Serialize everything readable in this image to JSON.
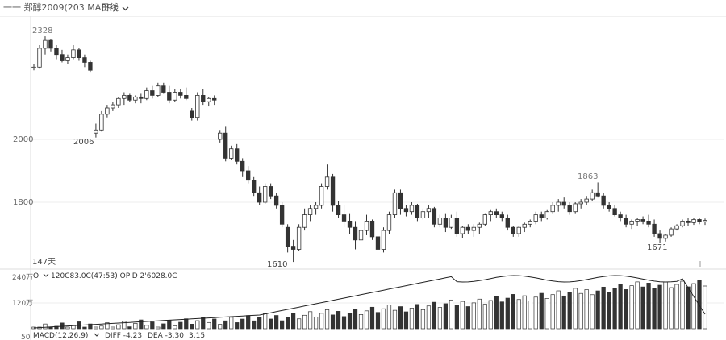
{
  "header": {
    "symbol_label": "一一 郑醇2009(203 MA09)",
    "period_label": "日线",
    "period_icon": "chevron-down-icon"
  },
  "main_chart": {
    "price_ticks": [
      "2000",
      "1800"
    ],
    "annotations": {
      "high_left": "2328",
      "low_mid": "2006",
      "low_bottom": "1610",
      "high_right": "1863",
      "low_right": "1671",
      "days_label": "147天"
    }
  },
  "volume_panel": {
    "legend_prefix": "OI",
    "legend_values": "120C83.0C(47:53)  OPID 2'6028.0C",
    "y_ticks": [
      "240万",
      "120万",
      "0"
    ]
  },
  "macd_panel": {
    "label": "MACD(12,26,9)",
    "diff": "DIFF -4.23",
    "dea": "DEA -3.30",
    "macd": "3.15"
  },
  "colors": {
    "up": "#ffffff",
    "down": "#333333",
    "outline": "#333333",
    "grid": "#eeeeee",
    "oi_line": "#222222"
  },
  "chart_data": {
    "type": "candlestick",
    "x_label": "",
    "y_label": "",
    "ylim": [
      1600,
      2350
    ],
    "candles": [
      [
        2230,
        2240,
        2220,
        2230
      ],
      [
        2230,
        2300,
        2225,
        2290
      ],
      [
        2290,
        2328,
        2270,
        2315
      ],
      [
        2315,
        2320,
        2280,
        2290
      ],
      [
        2290,
        2300,
        2255,
        2270
      ],
      [
        2270,
        2285,
        2245,
        2250
      ],
      [
        2250,
        2270,
        2240,
        2260
      ],
      [
        2260,
        2300,
        2255,
        2285
      ],
      [
        2285,
        2290,
        2250,
        2260
      ],
      [
        2260,
        2270,
        2230,
        2245
      ],
      [
        2245,
        2250,
        2215,
        2220
      ],
      [
        2020,
        2050,
        2006,
        2030
      ],
      [
        2030,
        2090,
        2025,
        2080
      ],
      [
        2080,
        2110,
        2070,
        2100
      ],
      [
        2100,
        2120,
        2090,
        2110
      ],
      [
        2110,
        2135,
        2100,
        2130
      ],
      [
        2130,
        2150,
        2110,
        2140
      ],
      [
        2140,
        2145,
        2120,
        2125
      ],
      [
        2125,
        2140,
        2115,
        2135
      ],
      [
        2135,
        2145,
        2115,
        2130
      ],
      [
        2130,
        2165,
        2125,
        2155
      ],
      [
        2155,
        2170,
        2130,
        2140
      ],
      [
        2140,
        2180,
        2135,
        2170
      ],
      [
        2170,
        2180,
        2145,
        2150
      ],
      [
        2150,
        2170,
        2115,
        2125
      ],
      [
        2125,
        2160,
        2120,
        2150
      ],
      [
        2150,
        2160,
        2130,
        2140
      ],
      [
        2140,
        2165,
        2125,
        2130
      ],
      [
        2090,
        2100,
        2060,
        2070
      ],
      [
        2070,
        2150,
        2060,
        2140
      ],
      [
        2140,
        2160,
        2110,
        2120
      ],
      [
        2120,
        2135,
        2105,
        2130
      ],
      [
        2130,
        2140,
        2110,
        2125
      ],
      [
        2000,
        2030,
        1990,
        2020
      ],
      [
        2020,
        2040,
        1930,
        1940
      ],
      [
        1940,
        1980,
        1935,
        1970
      ],
      [
        1970,
        1985,
        1920,
        1930
      ],
      [
        1930,
        1940,
        1880,
        1900
      ],
      [
        1900,
        1915,
        1860,
        1870
      ],
      [
        1870,
        1880,
        1820,
        1830
      ],
      [
        1830,
        1850,
        1790,
        1800
      ],
      [
        1800,
        1860,
        1795,
        1850
      ],
      [
        1850,
        1860,
        1810,
        1820
      ],
      [
        1820,
        1830,
        1780,
        1790
      ],
      [
        1790,
        1800,
        1720,
        1730
      ],
      [
        1720,
        1730,
        1640,
        1660
      ],
      [
        1660,
        1680,
        1610,
        1650
      ],
      [
        1650,
        1730,
        1645,
        1720
      ],
      [
        1720,
        1780,
        1710,
        1760
      ],
      [
        1760,
        1790,
        1740,
        1780
      ],
      [
        1780,
        1800,
        1760,
        1790
      ],
      [
        1790,
        1860,
        1780,
        1850
      ],
      [
        1850,
        1920,
        1840,
        1880
      ],
      [
        1880,
        1890,
        1770,
        1790
      ],
      [
        1790,
        1805,
        1750,
        1760
      ],
      [
        1760,
        1790,
        1720,
        1740
      ],
      [
        1740,
        1765,
        1700,
        1720
      ],
      [
        1720,
        1740,
        1650,
        1680
      ],
      [
        1680,
        1720,
        1670,
        1710
      ],
      [
        1710,
        1760,
        1695,
        1740
      ],
      [
        1740,
        1745,
        1680,
        1690
      ],
      [
        1690,
        1700,
        1640,
        1650
      ],
      [
        1650,
        1720,
        1640,
        1710
      ],
      [
        1710,
        1770,
        1700,
        1760
      ],
      [
        1760,
        1840,
        1750,
        1830
      ],
      [
        1830,
        1840,
        1760,
        1780
      ],
      [
        1780,
        1790,
        1755,
        1770
      ],
      [
        1770,
        1800,
        1760,
        1790
      ],
      [
        1790,
        1795,
        1740,
        1750
      ],
      [
        1750,
        1780,
        1745,
        1770
      ],
      [
        1770,
        1790,
        1750,
        1780
      ],
      [
        1780,
        1785,
        1720,
        1730
      ],
      [
        1730,
        1760,
        1720,
        1750
      ],
      [
        1750,
        1765,
        1705,
        1720
      ],
      [
        1720,
        1760,
        1715,
        1750
      ],
      [
        1750,
        1770,
        1690,
        1700
      ],
      [
        1700,
        1725,
        1685,
        1720
      ],
      [
        1720,
        1730,
        1700,
        1710
      ],
      [
        1710,
        1730,
        1690,
        1720
      ],
      [
        1720,
        1735,
        1700,
        1730
      ],
      [
        1730,
        1765,
        1725,
        1760
      ],
      [
        1760,
        1775,
        1740,
        1770
      ],
      [
        1770,
        1780,
        1750,
        1760
      ],
      [
        1760,
        1770,
        1740,
        1750
      ],
      [
        1750,
        1760,
        1710,
        1720
      ],
      [
        1720,
        1725,
        1690,
        1700
      ],
      [
        1700,
        1725,
        1690,
        1720
      ],
      [
        1720,
        1735,
        1705,
        1730
      ],
      [
        1730,
        1745,
        1720,
        1740
      ],
      [
        1740,
        1770,
        1730,
        1760
      ],
      [
        1760,
        1770,
        1740,
        1750
      ],
      [
        1750,
        1775,
        1745,
        1770
      ],
      [
        1770,
        1800,
        1765,
        1790
      ],
      [
        1790,
        1810,
        1770,
        1800
      ],
      [
        1800,
        1815,
        1780,
        1790
      ],
      [
        1790,
        1800,
        1760,
        1770
      ],
      [
        1770,
        1800,
        1765,
        1795
      ],
      [
        1795,
        1810,
        1780,
        1800
      ],
      [
        1800,
        1820,
        1790,
        1810
      ],
      [
        1810,
        1840,
        1805,
        1830
      ],
      [
        1830,
        1863,
        1815,
        1820
      ],
      [
        1820,
        1830,
        1780,
        1790
      ],
      [
        1790,
        1800,
        1770,
        1780
      ],
      [
        1780,
        1790,
        1755,
        1760
      ],
      [
        1760,
        1770,
        1740,
        1750
      ],
      [
        1750,
        1760,
        1720,
        1730
      ],
      [
        1730,
        1745,
        1715,
        1740
      ],
      [
        1740,
        1750,
        1725,
        1745
      ],
      [
        1745,
        1755,
        1730,
        1740
      ],
      [
        1740,
        1760,
        1720,
        1730
      ],
      [
        1730,
        1745,
        1690,
        1700
      ],
      [
        1700,
        1710,
        1671,
        1685
      ],
      [
        1685,
        1700,
        1675,
        1695
      ],
      [
        1695,
        1720,
        1690,
        1715
      ],
      [
        1715,
        1730,
        1710,
        1725
      ],
      [
        1725,
        1745,
        1720,
        1740
      ],
      [
        1740,
        1750,
        1725,
        1735
      ],
      [
        1735,
        1750,
        1728,
        1745
      ],
      [
        1745,
        1750,
        1730,
        1738
      ],
      [
        1738,
        1748,
        1728,
        1742
      ]
    ],
    "volume_max": 2400000,
    "volume_ticks": [
      0,
      1200000,
      2400000
    ]
  }
}
